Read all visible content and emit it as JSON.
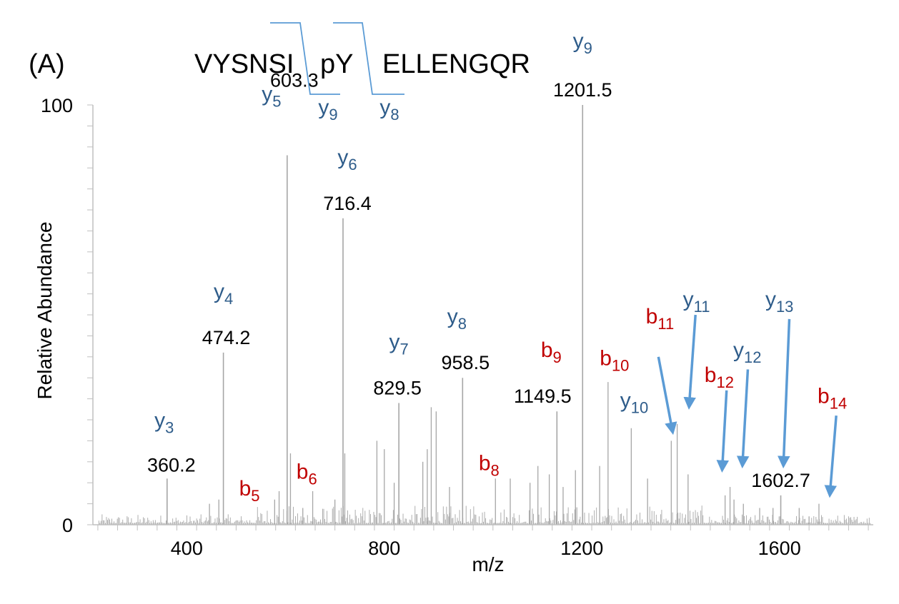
{
  "panel_label": "(A)",
  "peptide": {
    "segments": [
      "VYSNSI",
      "pY",
      "ELLENGQR"
    ],
    "cleavage_labels": [
      {
        "ion": "y",
        "sub": "9"
      },
      {
        "ion": "y",
        "sub": "8"
      }
    ]
  },
  "colors": {
    "y_ion": "#2e5c8a",
    "b_ion": "#c00000",
    "arrow": "#5b9bd5",
    "spectrum": "#a6a6a6",
    "axis": "#bfbfbf",
    "text": "#000000"
  },
  "chart_data": {
    "type": "bar",
    "xlabel": "m/z",
    "ylabel": "Relative Abundance",
    "xlim": [
      210,
      1790
    ],
    "ylim": [
      0,
      100
    ],
    "x_ticks": [
      400,
      800,
      1200,
      1600
    ],
    "y_ticks": [
      0,
      100
    ],
    "grid": false,
    "annotated_peaks": [
      {
        "x": 360.2,
        "y": 11,
        "ion": "y",
        "sub": "3",
        "mz_label": "360.2"
      },
      {
        "x": 474.2,
        "y": 41,
        "ion": "y",
        "sub": "4",
        "mz_label": "474.2"
      },
      {
        "x": 603.3,
        "y": 88,
        "ion": "y",
        "sub": "5",
        "mz_label": "603.3"
      },
      {
        "x": 716.4,
        "y": 73,
        "ion": "y",
        "sub": "6",
        "mz_label": "716.4"
      },
      {
        "x": 829.5,
        "y": 29,
        "ion": "y",
        "sub": "7",
        "mz_label": "829.5"
      },
      {
        "x": 958.5,
        "y": 35,
        "ion": "y",
        "sub": "8",
        "mz_label": "958.5"
      },
      {
        "x": 1149.5,
        "y": 27,
        "ion": "b",
        "sub": "9",
        "mz_label": "1149.5"
      },
      {
        "x": 1201.5,
        "y": 100,
        "ion": "y",
        "sub": "9",
        "mz_label": "1201.5"
      },
      {
        "x": 1602.7,
        "y": 7,
        "mz_label": "1602.7"
      }
    ],
    "ion_labels": [
      {
        "ion": "b",
        "sub": "5",
        "x": 527,
        "y": 7
      },
      {
        "ion": "b",
        "sub": "6",
        "x": 643,
        "y": 11
      },
      {
        "ion": "b",
        "sub": "8",
        "x": 1012,
        "y": 13
      },
      {
        "ion": "b",
        "sub": "10",
        "x": 1266,
        "y": 38
      },
      {
        "ion": "y",
        "sub": "10",
        "x": 1306,
        "y": 28
      },
      {
        "ion": "b",
        "sub": "11",
        "x": 1358,
        "y": 48
      },
      {
        "ion": "y",
        "sub": "11",
        "x": 1432,
        "y": 52
      },
      {
        "ion": "b",
        "sub": "12",
        "x": 1478,
        "y": 34
      },
      {
        "ion": "y",
        "sub": "12",
        "x": 1535,
        "y": 40
      },
      {
        "ion": "y",
        "sub": "13",
        "x": 1600,
        "y": 52
      },
      {
        "ion": "b",
        "sub": "14",
        "x": 1707,
        "y": 29
      }
    ],
    "arrow_peaks": [
      {
        "target": "b11",
        "from_x": 1355,
        "from_y": 40,
        "to_x": 1384,
        "to_y": 22
      },
      {
        "target": "y11",
        "from_x": 1430,
        "from_y": 50,
        "to_x": 1417,
        "to_y": 28
      },
      {
        "target": "b12",
        "from_x": 1493,
        "from_y": 32,
        "to_x": 1484,
        "to_y": 13
      },
      {
        "target": "y12",
        "from_x": 1536,
        "from_y": 37,
        "to_x": 1525,
        "to_y": 14
      },
      {
        "target": "y13",
        "from_x": 1620,
        "from_y": 49,
        "to_x": 1608,
        "to_y": 14
      },
      {
        "target": "b14",
        "from_x": 1715,
        "from_y": 26,
        "to_x": 1702,
        "to_y": 7
      }
    ],
    "secondary_peaks": [
      {
        "x": 446,
        "y": 5
      },
      {
        "x": 465,
        "y": 6
      },
      {
        "x": 578,
        "y": 6
      },
      {
        "x": 587,
        "y": 8
      },
      {
        "x": 610,
        "y": 17
      },
      {
        "x": 635,
        "y": 4
      },
      {
        "x": 655,
        "y": 8
      },
      {
        "x": 700,
        "y": 6
      },
      {
        "x": 720,
        "y": 17
      },
      {
        "x": 785,
        "y": 20
      },
      {
        "x": 800,
        "y": 18
      },
      {
        "x": 820,
        "y": 10
      },
      {
        "x": 878,
        "y": 15
      },
      {
        "x": 887,
        "y": 18
      },
      {
        "x": 895,
        "y": 28
      },
      {
        "x": 905,
        "y": 27
      },
      {
        "x": 932,
        "y": 9
      },
      {
        "x": 1025,
        "y": 11
      },
      {
        "x": 1055,
        "y": 11
      },
      {
        "x": 1095,
        "y": 10
      },
      {
        "x": 1111,
        "y": 14
      },
      {
        "x": 1134,
        "y": 12
      },
      {
        "x": 1162,
        "y": 9
      },
      {
        "x": 1187,
        "y": 13
      },
      {
        "x": 1236,
        "y": 14
      },
      {
        "x": 1253,
        "y": 34
      },
      {
        "x": 1300,
        "y": 23
      },
      {
        "x": 1333,
        "y": 11
      },
      {
        "x": 1381,
        "y": 20
      },
      {
        "x": 1393,
        "y": 24
      },
      {
        "x": 1415,
        "y": 12
      },
      {
        "x": 1490,
        "y": 7
      },
      {
        "x": 1500,
        "y": 9
      },
      {
        "x": 1508,
        "y": 6
      },
      {
        "x": 1527,
        "y": 5
      },
      {
        "x": 1560,
        "y": 4
      },
      {
        "x": 1587,
        "y": 4
      },
      {
        "x": 1640,
        "y": 4
      },
      {
        "x": 1660,
        "y": 2
      },
      {
        "x": 1680,
        "y": 5
      }
    ]
  }
}
